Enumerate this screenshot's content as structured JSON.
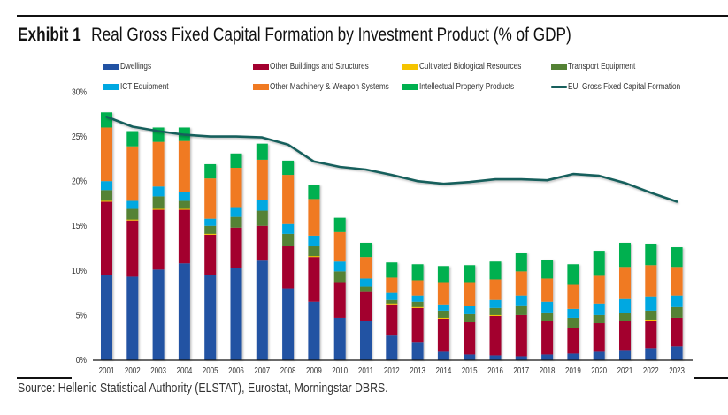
{
  "header": {
    "exhibit": "Exhibit 1",
    "title": "Real Gross Fixed Capital Formation by Investment Product (% of GDP)"
  },
  "footer": {
    "source": "Source: Hellenic Statistical Authority (ELSTAT), Eurostat, Morningstar DBRS."
  },
  "legend": [
    {
      "name": "Dwellings",
      "color": "#2152A3",
      "kind": "bar"
    },
    {
      "name": "Other Buildings and Structures",
      "color": "#A3002F",
      "kind": "bar"
    },
    {
      "name": "Cultivated Biological Resources",
      "color": "#F5C400",
      "kind": "bar"
    },
    {
      "name": "Transport Equipment",
      "color": "#548235",
      "kind": "bar"
    },
    {
      "name": "ICT Equipment",
      "color": "#00A8E1",
      "kind": "bar"
    },
    {
      "name": "Other Machinery & Weapon Systems",
      "color": "#F07A22",
      "kind": "bar"
    },
    {
      "name": "Intellectual Property Products",
      "color": "#00B04F",
      "kind": "bar"
    },
    {
      "name": "EU: Gross Fixed Capital Formation",
      "color": "#175F5C",
      "kind": "line"
    }
  ],
  "chart_data": {
    "type": "bar",
    "stacked": true,
    "title": "Real Gross Fixed Capital Formation by Investment Product (% of GDP)",
    "xlabel": "",
    "ylabel": "",
    "ylim": [
      0,
      30
    ],
    "yticks": [
      0,
      5,
      10,
      15,
      20,
      25,
      30
    ],
    "ytick_labels": [
      "0%",
      "5%",
      "10%",
      "15%",
      "20%",
      "25%",
      "30%"
    ],
    "grid": false,
    "legend_position": "top",
    "categories": [
      "2001",
      "2002",
      "2003",
      "2004",
      "2005",
      "2006",
      "2007",
      "2008",
      "2009",
      "2010",
      "2011",
      "2012",
      "2013",
      "2014",
      "2015",
      "2016",
      "2017",
      "2018",
      "2019",
      "2020",
      "2021",
      "2022",
      "2023"
    ],
    "series": [
      {
        "name": "Dwellings",
        "color": "#2152A3",
        "values": [
          9.5,
          9.3,
          10.1,
          10.8,
          9.5,
          10.3,
          11.1,
          8.0,
          6.5,
          4.7,
          4.4,
          2.8,
          2.0,
          0.9,
          0.6,
          0.5,
          0.4,
          0.6,
          0.7,
          0.9,
          1.1,
          1.3,
          1.5
        ]
      },
      {
        "name": "Other Buildings and Structures",
        "color": "#A3002F",
        "values": [
          8.2,
          6.3,
          6.7,
          6.0,
          4.5,
          4.5,
          3.9,
          4.7,
          5.0,
          4.0,
          3.2,
          3.4,
          3.8,
          3.7,
          3.6,
          4.4,
          4.6,
          3.7,
          2.9,
          3.2,
          3.2,
          3.1,
          3.2
        ]
      },
      {
        "name": "Cultivated Biological Resources",
        "color": "#F5C400",
        "values": [
          0.1,
          0.1,
          0.1,
          0.1,
          0.1,
          0.0,
          0.0,
          0.0,
          0.1,
          0.0,
          0.0,
          0.1,
          0.1,
          0.1,
          0.0,
          0.1,
          0.0,
          0.0,
          0.0,
          0.0,
          0.0,
          0.1,
          0.0
        ]
      },
      {
        "name": "Transport Equipment",
        "color": "#548235",
        "values": [
          1.2,
          1.2,
          1.4,
          0.9,
          0.9,
          1.2,
          1.7,
          1.4,
          1.1,
          1.2,
          0.6,
          0.4,
          0.6,
          0.8,
          0.9,
          0.8,
          1.1,
          1.0,
          1.1,
          0.9,
          0.9,
          1.0,
          1.2
        ]
      },
      {
        "name": "ICT Equipment",
        "color": "#00A8E1",
        "values": [
          1.0,
          0.9,
          1.1,
          1.0,
          0.8,
          1.0,
          1.2,
          1.1,
          1.2,
          1.1,
          0.9,
          0.8,
          0.7,
          0.7,
          0.9,
          0.9,
          1.1,
          1.2,
          1.0,
          1.3,
          1.6,
          1.6,
          1.3
        ]
      },
      {
        "name": "Other Machinery & Weapon Systems",
        "color": "#F07A22",
        "values": [
          6.0,
          6.1,
          5.0,
          5.7,
          4.5,
          4.5,
          4.5,
          5.5,
          4.1,
          3.3,
          2.4,
          1.7,
          1.7,
          2.5,
          2.7,
          2.3,
          2.7,
          2.6,
          2.7,
          3.1,
          3.6,
          3.5,
          3.2
        ]
      },
      {
        "name": "Intellectual Property Products",
        "color": "#00B04F",
        "values": [
          1.7,
          1.7,
          1.6,
          1.5,
          1.6,
          1.6,
          1.8,
          1.6,
          1.6,
          1.6,
          1.6,
          1.7,
          1.8,
          1.8,
          1.9,
          2.0,
          2.1,
          2.1,
          2.3,
          2.8,
          2.7,
          2.4,
          2.2
        ]
      }
    ],
    "line_series": [
      {
        "name": "EU: Gross Fixed Capital Formation",
        "color": "#175F5C",
        "values": [
          27.2,
          26.1,
          25.6,
          25.2,
          25.0,
          25.0,
          24.9,
          24.1,
          22.2,
          21.6,
          21.3,
          20.7,
          20.0,
          19.7,
          19.9,
          20.2,
          20.2,
          20.1,
          20.8,
          20.6,
          19.8,
          18.7,
          17.7
        ]
      }
    ]
  }
}
